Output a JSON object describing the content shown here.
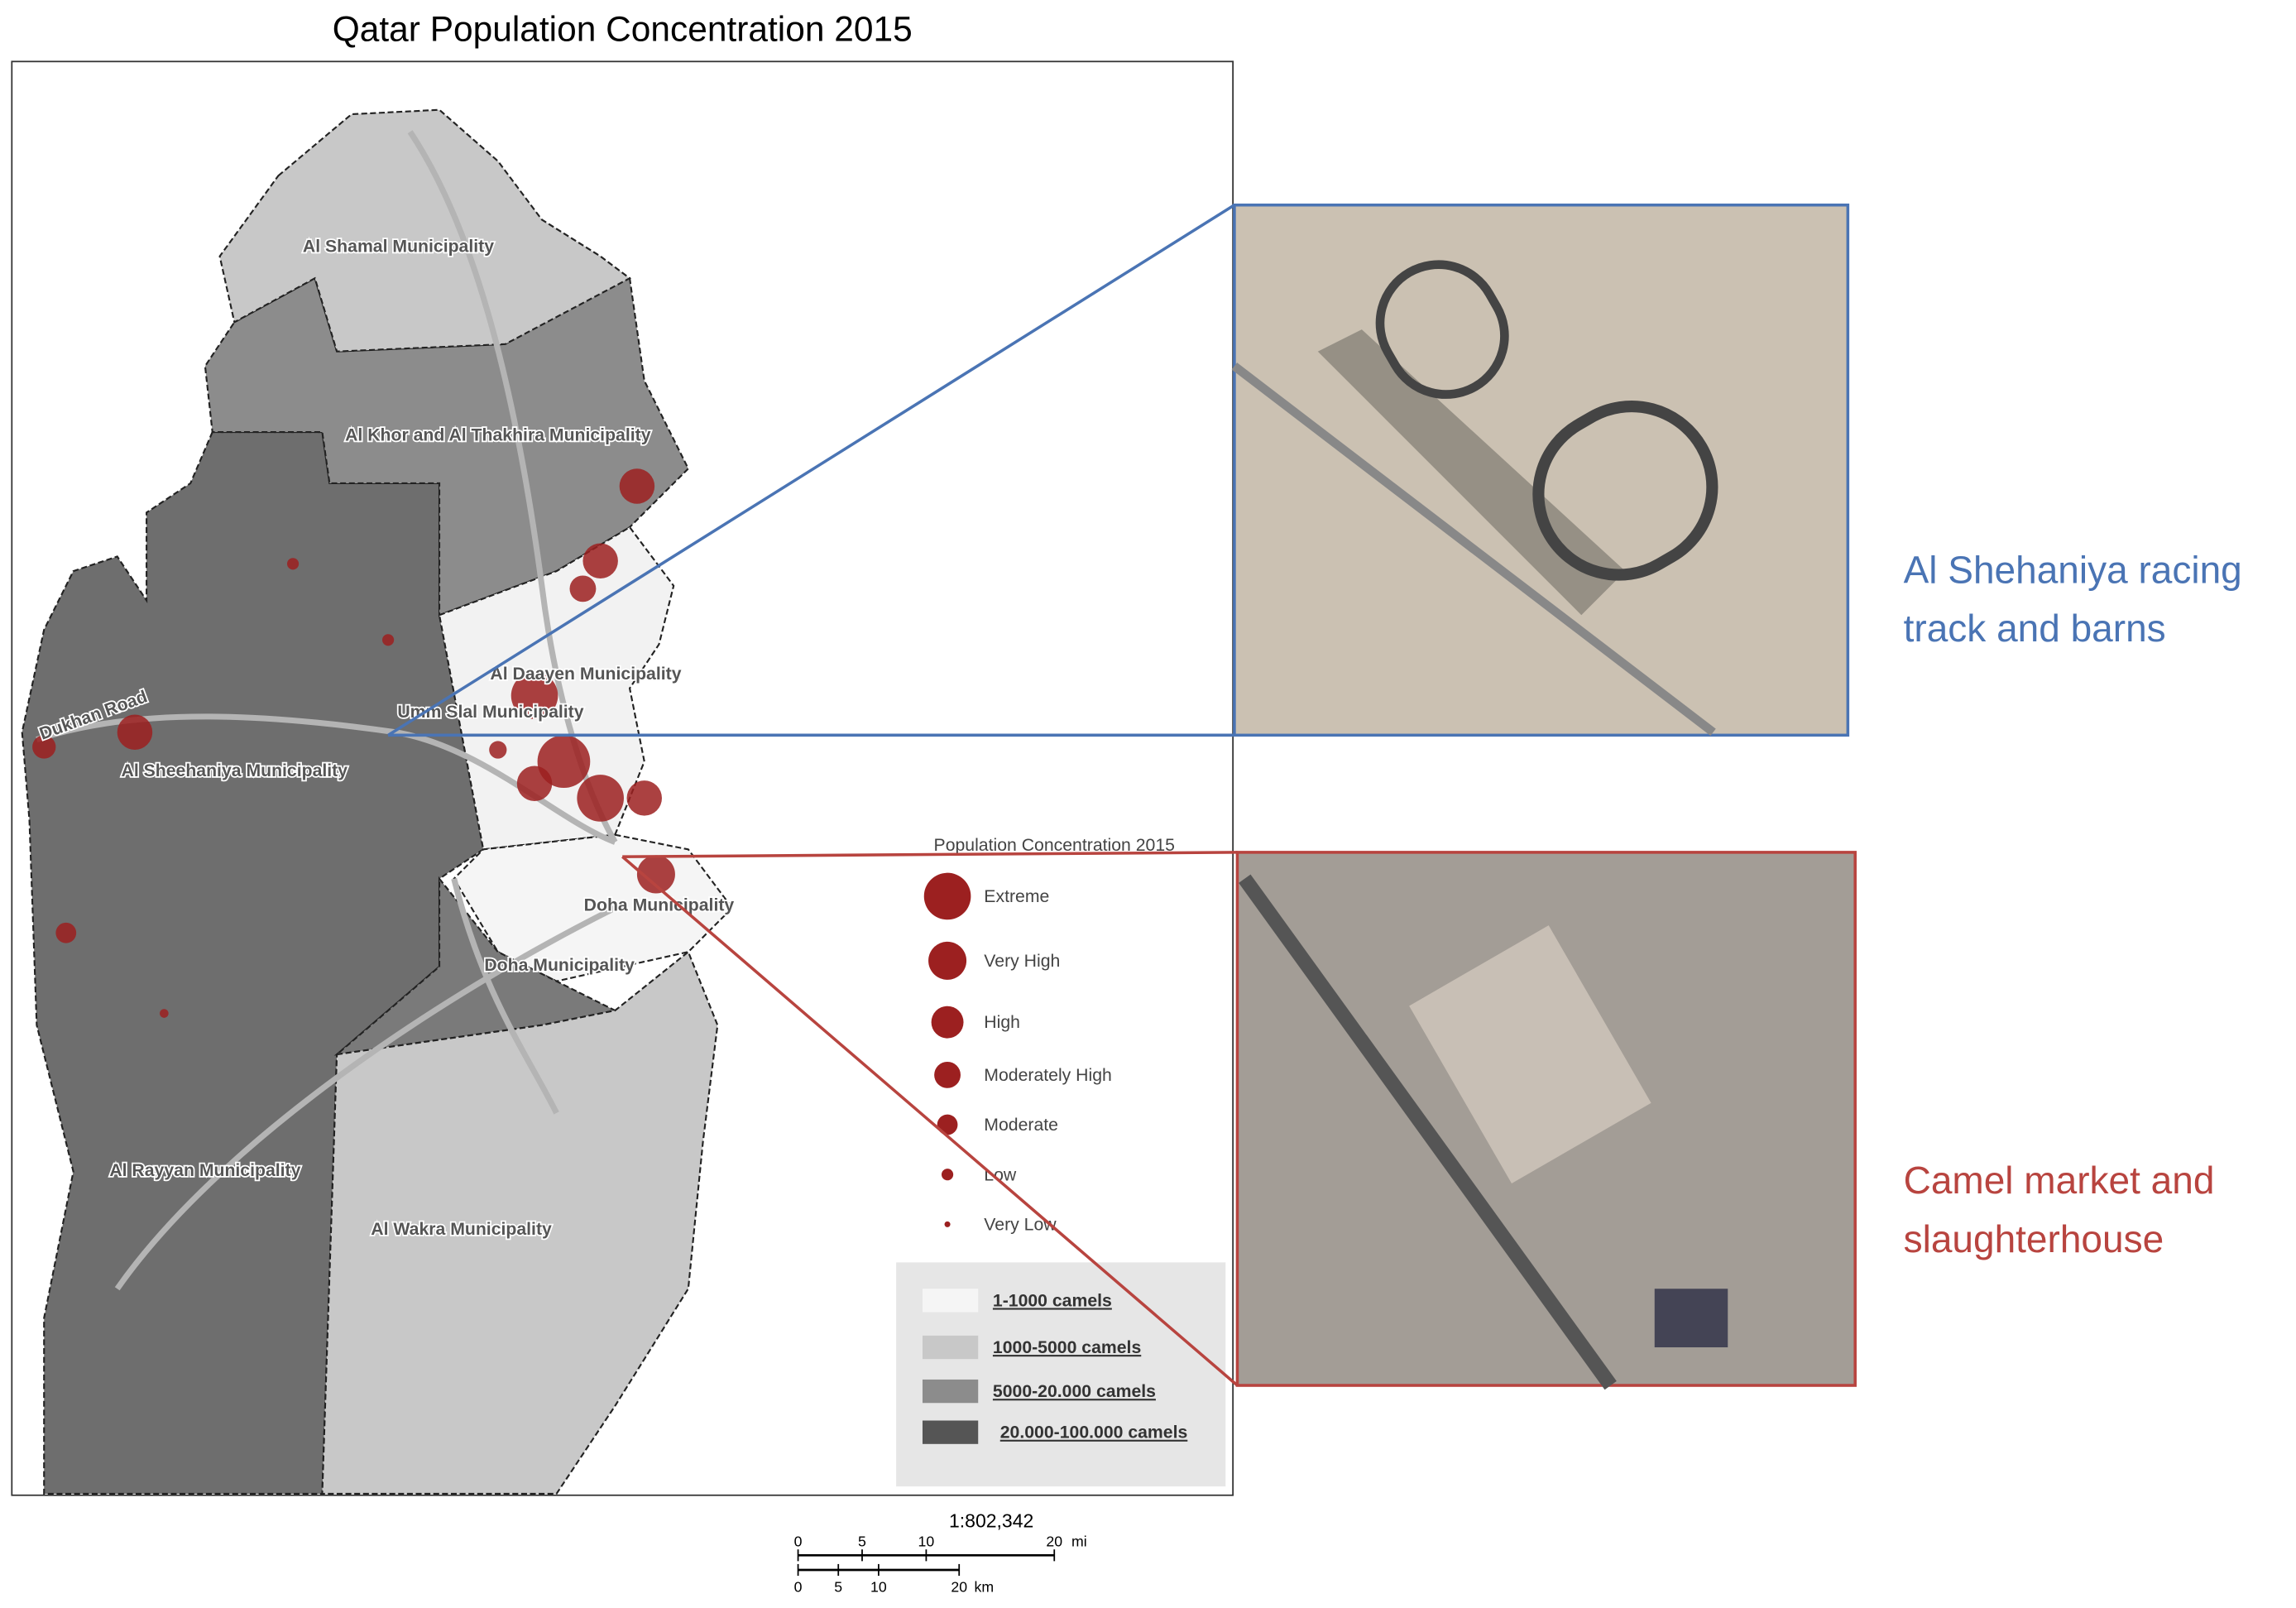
{
  "title": "Qatar Population Concentration 2015",
  "municipalities": [
    "Al Shamal Municipality",
    "Al Khor and Al Thakhira Municipality",
    "Al Daayen Municipality",
    "Umm Slal Municipality",
    "Al Sheehaniya Municipality",
    "Doha Municipality",
    "Doha Municipality",
    "Al Rayyan Municipality",
    "Al Wakra Municipality"
  ],
  "road": "Dukhan Road",
  "legend": {
    "title": "Population Concentration 2015",
    "items": [
      "Extreme",
      "Very High",
      "High",
      "Moderately High",
      "Moderate",
      "Low",
      "Very Low"
    ]
  },
  "camel_legend": [
    "1-1000 camels",
    "1000-5000 camels",
    "5000-20.000 camels",
    "20.000-100.000 camels"
  ],
  "scale": {
    "ratio": "1:802,342",
    "miles": {
      "ticks": [
        0,
        5,
        10,
        20
      ],
      "unit": "mi"
    },
    "km": {
      "ticks": [
        0,
        5,
        10,
        20
      ],
      "unit": "km"
    }
  },
  "callouts": [
    {
      "lines": [
        "Al Shehaniya racing",
        "track and barns"
      ]
    },
    {
      "lines": [
        "Camel market and",
        "slaughterhouse"
      ]
    }
  ]
}
